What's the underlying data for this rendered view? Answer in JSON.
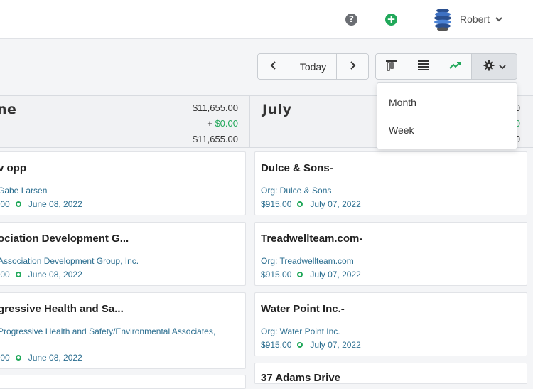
{
  "header": {
    "user_name": "Robert",
    "help_glyph": "?",
    "add_glyph": "+",
    "icons": [
      "help-icon",
      "add-icon",
      "avatar",
      "chevron-down-icon"
    ]
  },
  "toolbar": {
    "today_label": "Today",
    "icons": [
      "chevron-left-icon",
      "chevron-right-icon",
      "board-view-icon",
      "list-view-icon",
      "forecast-trend-icon",
      "gear-icon",
      "chevron-down-icon"
    ]
  },
  "settings_menu": {
    "items": [
      "Month",
      "Week"
    ]
  },
  "columns": [
    {
      "title": "ne",
      "total": "$11,655.00",
      "plus_prefix": "+ ",
      "added": "$0.00",
      "net": "$11,655.00",
      "cards": [
        {
          "title": "v opp",
          "org": "Gabe Larsen",
          "amount": ".00",
          "date": "June 08, 2022"
        },
        {
          "title": "ociation Development G...",
          "org": "Association Development Group, Inc.",
          "amount": ".00",
          "date": "June 08, 2022"
        },
        {
          "title": "gressive Health and Sa...",
          "org": "Progressive Health and Safety/Environmental Associates,",
          "org_cont": ".",
          "amount": ".00",
          "date": "June 08, 2022"
        }
      ]
    },
    {
      "title": "July",
      "total": "0",
      "added": "0",
      "net": "0",
      "cards": [
        {
          "title": "Dulce & Sons-",
          "org": "Org: Dulce & Sons",
          "amount": "$915.00",
          "date": "July 07, 2022"
        },
        {
          "title": "Treadwellteam.com-",
          "org": "Org: Treadwellteam.com",
          "amount": "$915.00",
          "date": "July 07, 2022"
        },
        {
          "title": "Water Point Inc.-",
          "org": "Org: Water Point Inc.",
          "amount": "$915.00",
          "date": "July 07, 2022"
        },
        {
          "title": "37 Adams Drive"
        }
      ]
    }
  ],
  "colors": {
    "accent_green": "#21a85a",
    "link_blue": "#2a6d8f"
  }
}
